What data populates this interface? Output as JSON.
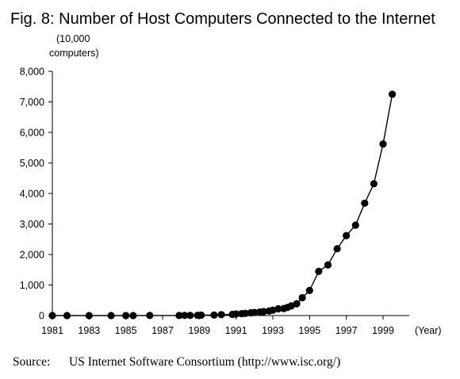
{
  "chart_data": {
    "type": "line",
    "title": "Fig. 8: Number of Host Computers Connected to the Internet",
    "ylabel_lines": [
      "(10,000",
      "computers)"
    ],
    "xlabel": "(Year)",
    "xlim": [
      1981,
      1999.8
    ],
    "ylim": [
      0,
      8000
    ],
    "yticks": [
      0,
      1000,
      2000,
      3000,
      4000,
      5000,
      6000,
      7000,
      8000
    ],
    "ytick_labels": [
      "0",
      "1,000",
      "2,000",
      "3,000",
      "4,000",
      "5,000",
      "6,000",
      "7,000",
      "8,000"
    ],
    "xticks": [
      1981,
      1983,
      1985,
      1987,
      1989,
      1991,
      1993,
      1995,
      1997,
      1999
    ],
    "xtick_labels": [
      "1981",
      "1983",
      "1985",
      "1987",
      "1989",
      "1991",
      "1993",
      "1995",
      "1997",
      "1999"
    ],
    "grid": false,
    "series": [
      {
        "marker": "filled-circle",
        "color": "#000000",
        "x": [
          1981.0,
          1981.8,
          1983.0,
          1984.2,
          1985.0,
          1985.4,
          1986.3,
          1987.9,
          1988.2,
          1988.5,
          1988.9,
          1989.1,
          1989.8,
          1990.2,
          1990.8,
          1991.0,
          1991.3,
          1991.5,
          1991.8,
          1992.0,
          1992.3,
          1992.5,
          1992.8,
          1993.0,
          1993.3,
          1993.6,
          1993.8,
          1994.0,
          1994.3,
          1994.6,
          1995.0,
          1995.5,
          1996.0,
          1996.5,
          1997.0,
          1997.5,
          1998.0,
          1998.5,
          1999.0,
          1999.5
        ],
        "y": [
          0,
          0,
          0,
          0,
          1,
          1,
          2,
          3,
          5,
          6,
          8,
          13,
          16,
          31,
          38,
          53,
          62,
          73,
          90,
          100,
          117,
          131,
          150,
          177,
          221,
          232,
          264,
          313,
          386,
          585,
          820,
          1450,
          1660,
          2190,
          2620,
          2960,
          3680,
          4320,
          5620,
          7250
        ]
      }
    ]
  },
  "source": {
    "label": "Source:",
    "text": "US Internet Software Consortium (http://www.isc.org/)"
  }
}
